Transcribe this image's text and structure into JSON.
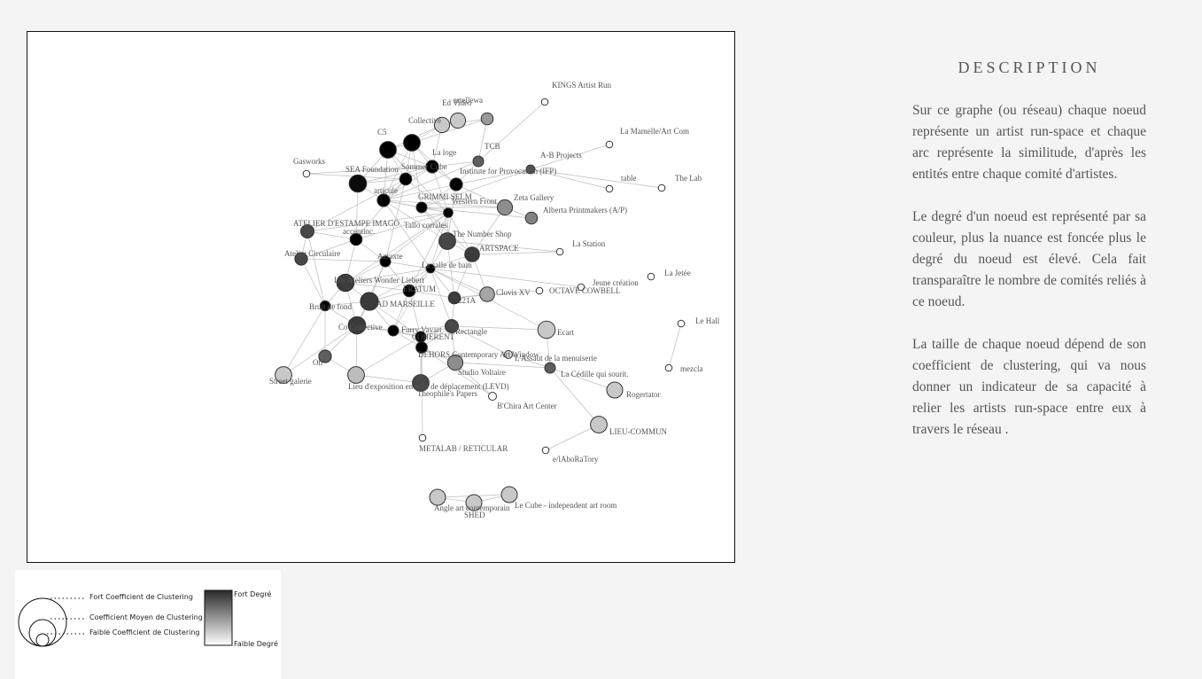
{
  "description": {
    "title": "DESCRIPTION",
    "paragraphs": [
      "Sur ce graphe (ou réseau) chaque noeud représente un artist run-space et chaque arc représente la similitude, d'après les entités entre chaque comité d'artistes.",
      "Le degré d'un noeud est représenté par sa couleur, plus la nuance est foncée plus le degré du noeud est élevé. Cela fait transparaître le nombre de comités reliés à ce noeud.",
      "La taille de chaque noeud dépend de son coefficient de clustering, qui va nous donner un indicateur de sa capacité à relier les artists run-space entre eux à travers le réseau ."
    ]
  },
  "legend": {
    "fort_clustering": "Fort Coefficient de Clustering",
    "moyen_clustering": "Coefficient Moyen de Clustering",
    "faible_clustering": "Faible Coefficient de Clustering",
    "fort_degre": "Fort Degré",
    "faible_degre": "Faible Degré"
  },
  "graph": {
    "nodes": [
      {
        "id": "kings",
        "label": "KINGS Artist Run",
        "degree": 0.05,
        "clustering": 0.1
      },
      {
        "id": "artellewa",
        "label": "artellewa",
        "degree": 0.35,
        "clustering": 0.5
      },
      {
        "id": "edvideo",
        "label": "Ed Video",
        "degree": 0.15,
        "clustering": 0.75
      },
      {
        "id": "collective",
        "label": "Collective",
        "degree": 0.15,
        "clustering": 0.75
      },
      {
        "id": "lamamelle",
        "label": "La Mamelle/Art Com",
        "degree": 0.05,
        "clustering": 0.1
      },
      {
        "id": "c5",
        "label": "C5",
        "degree": 1.0,
        "clustering": 0.85
      },
      {
        "id": "tcb",
        "label": "TCB",
        "degree": 0.6,
        "clustering": 0.4
      },
      {
        "id": "laloge",
        "label": "La loge",
        "degree": 1.0,
        "clustering": 0.85
      },
      {
        "id": "abprojects",
        "label": "A-B Projects",
        "degree": 0.65,
        "clustering": 0.25
      },
      {
        "id": "gasworks",
        "label": "Gasworks",
        "degree": 0.05,
        "clustering": 0.1
      },
      {
        "id": "sommer",
        "label": "Sommer Cube",
        "degree": 1.0,
        "clustering": 0.55
      },
      {
        "id": "ifp",
        "label": "Institute for Provocation (IFP)",
        "degree": 1.0,
        "clustering": 0.55
      },
      {
        "id": "seafound",
        "label": "SEA Foundation",
        "degree": 0.95,
        "clustering": 0.9
      },
      {
        "id": "table",
        "label": "table",
        "degree": 0.05,
        "clustering": 0.1
      },
      {
        "id": "thelab",
        "label": "The Lab",
        "degree": 0.05,
        "clustering": 0.1
      },
      {
        "id": "articule",
        "label": "articule",
        "degree": 1.0,
        "clustering": 0.5
      },
      {
        "id": "grimmi",
        "label": "GRIMMI SELM",
        "degree": 1.0,
        "clustering": 0.55
      },
      {
        "id": "zeta",
        "label": "Zeta Gallery",
        "degree": 0.4,
        "clustering": 0.75
      },
      {
        "id": "western",
        "label": "Western Front",
        "degree": 1.0,
        "clustering": 0.4
      },
      {
        "id": "alberta",
        "label": "Alberta Printmakers (A/P)",
        "degree": 0.45,
        "clustering": 0.5
      },
      {
        "id": "atelierimago",
        "label": "ATELIER D'ESTAMPE IMAGO",
        "degree": 0.7,
        "clustering": 0.6
      },
      {
        "id": "corrales",
        "label": "Tallo corrales",
        "degree": 1.0,
        "clustering": 0.3
      },
      {
        "id": "accentinc",
        "label": "accentinc.",
        "degree": 1.0,
        "clustering": 0.5
      },
      {
        "id": "numbershop",
        "label": "The Number Shop",
        "degree": 0.7,
        "clustering": 0.85
      },
      {
        "id": "lastation",
        "label": "La Station",
        "degree": 0.05,
        "clustering": 0.1
      },
      {
        "id": "artspace",
        "label": "ARTSPACE",
        "degree": 0.75,
        "clustering": 0.7
      },
      {
        "id": "ateliercirc",
        "label": "Atelier Circulaire",
        "degree": 0.7,
        "clustering": 0.55
      },
      {
        "id": "azraxte",
        "label": "Azraxte",
        "degree": 1.0,
        "clustering": 0.4
      },
      {
        "id": "lajetee",
        "label": "La Jetée",
        "degree": 0.05,
        "clustering": 0.1
      },
      {
        "id": "salledebain",
        "label": "La salle de bain",
        "degree": 1.0,
        "clustering": 0.25
      },
      {
        "id": "wonder",
        "label": "Les Ateliers Wonder Liebert",
        "degree": 0.75,
        "clustering": 0.9
      },
      {
        "id": "jeune",
        "label": "Jeune création",
        "degree": 0.05,
        "clustering": 0.1
      },
      {
        "id": "octave",
        "label": "OCTAVE COWBELL",
        "degree": 0.05,
        "clustering": 0.1
      },
      {
        "id": "clovis",
        "label": "Clovis XV",
        "degree": 0.3,
        "clustering": 0.7
      },
      {
        "id": "eratum",
        "label": "ERATUM",
        "degree": 1.0,
        "clustering": 0.5
      },
      {
        "id": "x21a",
        "label": "221A",
        "degree": 0.75,
        "clustering": 0.5
      },
      {
        "id": "admarseille",
        "label": "AD MARSEILLE",
        "degree": 0.75,
        "clustering": 0.95
      },
      {
        "id": "bruitdefond",
        "label": "Bruit de fond",
        "degree": 1.0,
        "clustering": 0.35
      },
      {
        "id": "lehall",
        "label": "Le Hall",
        "degree": 0.05,
        "clustering": 0.1
      },
      {
        "id": "ecart",
        "label": "Ecart",
        "degree": 0.15,
        "clustering": 0.9
      },
      {
        "id": "coco",
        "label": "Co Collective",
        "degree": 0.75,
        "clustering": 0.9
      },
      {
        "id": "furry",
        "label": "Furry Vavart",
        "degree": 1.0,
        "clustering": 0.4
      },
      {
        "id": "rectangle",
        "label": "Rectangle",
        "degree": 0.7,
        "clustering": 0.6
      },
      {
        "id": "coherent",
        "label": "COHERENT",
        "degree": 1.0,
        "clustering": 0.4
      },
      {
        "id": "dehors",
        "label": "DEHORS Contemporary Art Window",
        "degree": 1.0,
        "clustering": 0.45
      },
      {
        "id": "assaut",
        "label": "L'Assaut de la menuiserie",
        "degree": 0.1,
        "clustering": 0.2
      },
      {
        "id": "oh",
        "label": "Oh",
        "degree": 0.6,
        "clustering": 0.55
      },
      {
        "id": "mezcla",
        "label": "mezcla",
        "degree": 0.05,
        "clustering": 0.1
      },
      {
        "id": "voltaire",
        "label": "Studio Voltaire",
        "degree": 0.4,
        "clustering": 0.75
      },
      {
        "id": "lacedille",
        "label": "La Cédille qui sourit.",
        "degree": 0.6,
        "clustering": 0.4
      },
      {
        "id": "streetgal",
        "label": "Street galerie",
        "degree": 0.15,
        "clustering": 0.85
      },
      {
        "id": "levd",
        "label": "Lieu d'exposition en voie de déplacement (LEVD)",
        "degree": 0.2,
        "clustering": 0.85
      },
      {
        "id": "theophile",
        "label": "Theophile's Papers",
        "degree": 0.7,
        "clustering": 0.85
      },
      {
        "id": "rogertator",
        "label": "Rogertator",
        "degree": 0.15,
        "clustering": 0.8
      },
      {
        "id": "bchira",
        "label": "B'Chira Art Center",
        "degree": 0.05,
        "clustering": 0.2
      },
      {
        "id": "lieucommun",
        "label": "LIEU-COMMUN",
        "degree": 0.15,
        "clustering": 0.85
      },
      {
        "id": "metalab",
        "label": "METALAB / RETICULAR",
        "degree": 0.05,
        "clustering": 0.1
      },
      {
        "id": "laborat",
        "label": "e/lAboRaTory",
        "degree": 0.05,
        "clustering": 0.1
      },
      {
        "id": "angle",
        "label": "Angle art contemporain",
        "degree": 0.15,
        "clustering": 0.8
      },
      {
        "id": "shed",
        "label": "SHED",
        "degree": 0.15,
        "clustering": 0.8
      },
      {
        "id": "lecube",
        "label": "Le Cube - independent art room",
        "degree": 0.15,
        "clustering": 0.8
      }
    ],
    "edges": [
      [
        "kings",
        "tcb"
      ],
      [
        "artellewa",
        "collective"
      ],
      [
        "artellewa",
        "laloge"
      ],
      [
        "artellewa",
        "tcb"
      ],
      [
        "edvideo",
        "collective"
      ],
      [
        "collective",
        "c5"
      ],
      [
        "collective",
        "laloge"
      ],
      [
        "collective",
        "sommer"
      ],
      [
        "c5",
        "laloge"
      ],
      [
        "c5",
        "sommer"
      ],
      [
        "c5",
        "seafound"
      ],
      [
        "c5",
        "articule"
      ],
      [
        "c5",
        "grimmi"
      ],
      [
        "c5",
        "corrales"
      ],
      [
        "laloge",
        "sommer"
      ],
      [
        "laloge",
        "ifp"
      ],
      [
        "laloge",
        "grimmi"
      ],
      [
        "laloge",
        "western"
      ],
      [
        "laloge",
        "articule"
      ],
      [
        "tcb",
        "sommer"
      ],
      [
        "tcb",
        "ifp"
      ],
      [
        "tcb",
        "grimmi"
      ],
      [
        "abprojects",
        "ifp"
      ],
      [
        "abprojects",
        "lamamelle"
      ],
      [
        "abprojects",
        "table"
      ],
      [
        "abprojects",
        "thelab"
      ],
      [
        "abprojects",
        "western"
      ],
      [
        "gasworks",
        "articule"
      ],
      [
        "gasworks",
        "sommer"
      ],
      [
        "sommer",
        "seafound"
      ],
      [
        "sommer",
        "articule"
      ],
      [
        "sommer",
        "grimmi"
      ],
      [
        "sommer",
        "ifp"
      ],
      [
        "sommer",
        "corrales"
      ],
      [
        "ifp",
        "grimmi"
      ],
      [
        "ifp",
        "western"
      ],
      [
        "ifp",
        "zeta"
      ],
      [
        "ifp",
        "numbershop"
      ],
      [
        "seafound",
        "articule"
      ],
      [
        "seafound",
        "grimmi"
      ],
      [
        "seafound",
        "accentinc"
      ],
      [
        "articule",
        "grimmi"
      ],
      [
        "articule",
        "atelierimago"
      ],
      [
        "articule",
        "accentinc"
      ],
      [
        "articule",
        "corrales"
      ],
      [
        "articule",
        "azraxte"
      ],
      [
        "grimmi",
        "western"
      ],
      [
        "grimmi",
        "corrales"
      ],
      [
        "grimmi",
        "numbershop"
      ],
      [
        "grimmi",
        "zeta"
      ],
      [
        "grimmi",
        "salledebain"
      ],
      [
        "zeta",
        "western"
      ],
      [
        "zeta",
        "alberta"
      ],
      [
        "zeta",
        "artspace"
      ],
      [
        "western",
        "numbershop"
      ],
      [
        "western",
        "alberta"
      ],
      [
        "western",
        "corrales"
      ],
      [
        "western",
        "artspace"
      ],
      [
        "atelierimago",
        "corrales"
      ],
      [
        "atelierimago",
        "ateliercirc"
      ],
      [
        "atelierimago",
        "accentinc"
      ],
      [
        "atelierimago",
        "bruitdefond"
      ],
      [
        "corrales",
        "accentinc"
      ],
      [
        "corrales",
        "numbershop"
      ],
      [
        "corrales",
        "azraxte"
      ],
      [
        "corrales",
        "salledebain"
      ],
      [
        "corrales",
        "wonder"
      ],
      [
        "corrales",
        "eratum"
      ],
      [
        "corrales",
        "artspace"
      ],
      [
        "accentinc",
        "ateliercirc"
      ],
      [
        "accentinc",
        "azraxte"
      ],
      [
        "accentinc",
        "wonder"
      ],
      [
        "numbershop",
        "artspace"
      ],
      [
        "numbershop",
        "salledebain"
      ],
      [
        "numbershop",
        "x21a"
      ],
      [
        "numbershop",
        "lastation"
      ],
      [
        "artspace",
        "salledebain"
      ],
      [
        "artspace",
        "x21a"
      ],
      [
        "artspace",
        "clovis"
      ],
      [
        "artspace",
        "lastation"
      ],
      [
        "ateliercirc",
        "azraxte"
      ],
      [
        "ateliercirc",
        "bruitdefond"
      ],
      [
        "azraxte",
        "wonder"
      ],
      [
        "azraxte",
        "admarseille"
      ],
      [
        "azraxte",
        "salledebain"
      ],
      [
        "azraxte",
        "eratum"
      ],
      [
        "azraxte",
        "coco"
      ],
      [
        "salledebain",
        "eratum"
      ],
      [
        "salledebain",
        "x21a"
      ],
      [
        "salledebain",
        "admarseille"
      ],
      [
        "salledebain",
        "clovis"
      ],
      [
        "salledebain",
        "wonder"
      ],
      [
        "salledebain",
        "jeune"
      ],
      [
        "salledebain",
        "furry"
      ],
      [
        "salledebain",
        "rectangle"
      ],
      [
        "wonder",
        "admarseille"
      ],
      [
        "wonder",
        "eratum"
      ],
      [
        "wonder",
        "bruitdefond"
      ],
      [
        "wonder",
        "coco"
      ],
      [
        "eratum",
        "admarseille"
      ],
      [
        "eratum",
        "x21a"
      ],
      [
        "eratum",
        "furry"
      ],
      [
        "eratum",
        "coherent"
      ],
      [
        "x21a",
        "clovis"
      ],
      [
        "x21a",
        "rectangle"
      ],
      [
        "x21a",
        "octave"
      ],
      [
        "admarseille",
        "coco"
      ],
      [
        "admarseille",
        "bruitdefond"
      ],
      [
        "admarseille",
        "furry"
      ],
      [
        "admarseille",
        "coherent"
      ],
      [
        "bruitdefond",
        "coco"
      ],
      [
        "bruitdefond",
        "oh"
      ],
      [
        "bruitdefond",
        "streetgal"
      ],
      [
        "coco",
        "furry"
      ],
      [
        "coco",
        "coherent"
      ],
      [
        "coco",
        "oh"
      ],
      [
        "coco",
        "levd"
      ],
      [
        "coco",
        "streetgal"
      ],
      [
        "furry",
        "coherent"
      ],
      [
        "furry",
        "rectangle"
      ],
      [
        "furry",
        "dehors"
      ],
      [
        "coherent",
        "rectangle"
      ],
      [
        "coherent",
        "dehors"
      ],
      [
        "coherent",
        "theophile"
      ],
      [
        "coherent",
        "levd"
      ],
      [
        "rectangle",
        "dehors"
      ],
      [
        "rectangle",
        "voltaire"
      ],
      [
        "rectangle",
        "ecart"
      ],
      [
        "rectangle",
        "assaut"
      ],
      [
        "dehors",
        "voltaire"
      ],
      [
        "dehors",
        "theophile"
      ],
      [
        "dehors",
        "bchira"
      ],
      [
        "dehors",
        "metalab"
      ],
      [
        "ecart",
        "lacedille"
      ],
      [
        "ecart",
        "salledebain"
      ],
      [
        "lacedille",
        "rogertator"
      ],
      [
        "lacedille",
        "lieucommun"
      ],
      [
        "lacedille",
        "assaut"
      ],
      [
        "lacedille",
        "voltaire"
      ],
      [
        "theophile",
        "levd"
      ],
      [
        "theophile",
        "voltaire"
      ],
      [
        "levd",
        "oh"
      ],
      [
        "voltaire",
        "bchira"
      ],
      [
        "lieucommun",
        "laborat"
      ],
      [
        "lehall",
        "mezcla"
      ],
      [
        "angle",
        "shed"
      ],
      [
        "angle",
        "lecube"
      ],
      [
        "shed",
        "lecube"
      ]
    ]
  }
}
